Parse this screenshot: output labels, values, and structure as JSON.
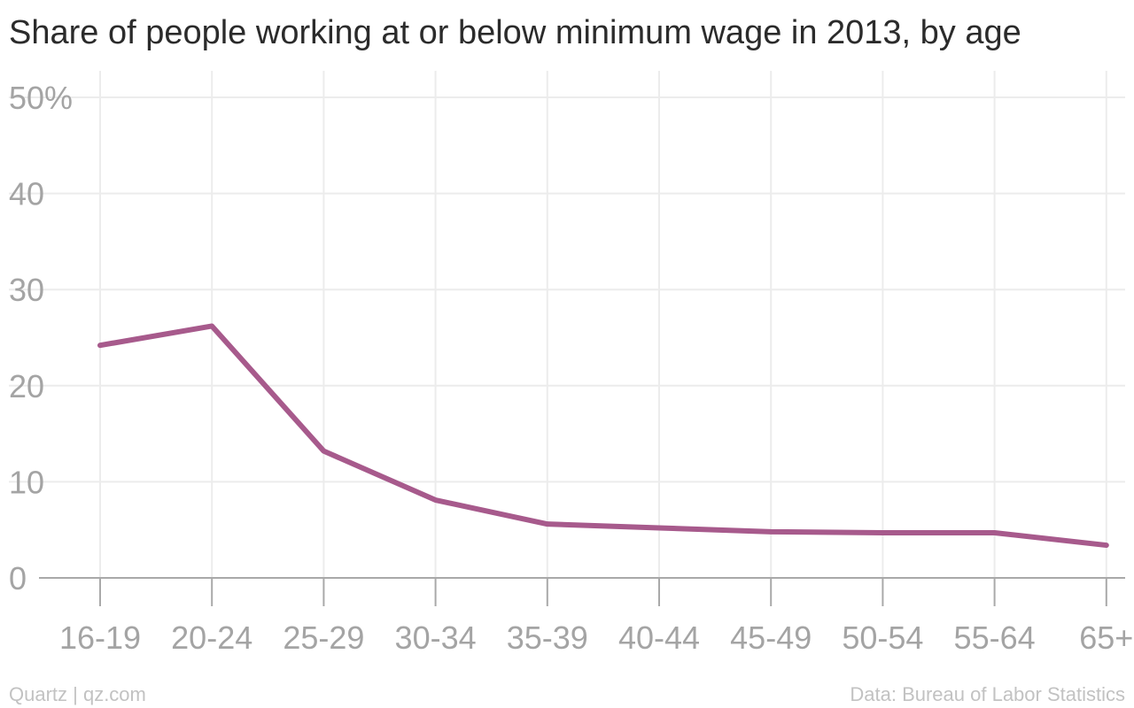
{
  "chart_data": {
    "type": "line",
    "title": "Share of people working at or below minimum wage in 2013, by age",
    "xlabel": "",
    "ylabel": "",
    "categories": [
      "16-19",
      "20-24",
      "25-29",
      "30-34",
      "35-39",
      "40-44",
      "45-49",
      "50-54",
      "55-64",
      "65+"
    ],
    "series": [
      {
        "values": [
          24.2,
          26.2,
          13.2,
          8.1,
          5.6,
          5.2,
          4.8,
          4.7,
          4.7,
          3.4
        ],
        "color": "#a75a8c"
      }
    ],
    "ylim": [
      0,
      50
    ],
    "y_ticks": [
      0,
      10,
      20,
      30,
      40,
      50
    ],
    "y_tick_labels": [
      "0",
      "10",
      "20",
      "30",
      "40",
      "50%"
    ],
    "grid": true,
    "legend": "none"
  },
  "footer": {
    "source_left": "Quartz | qz.com",
    "source_right": "Data: Bureau of Labor Statistics"
  }
}
